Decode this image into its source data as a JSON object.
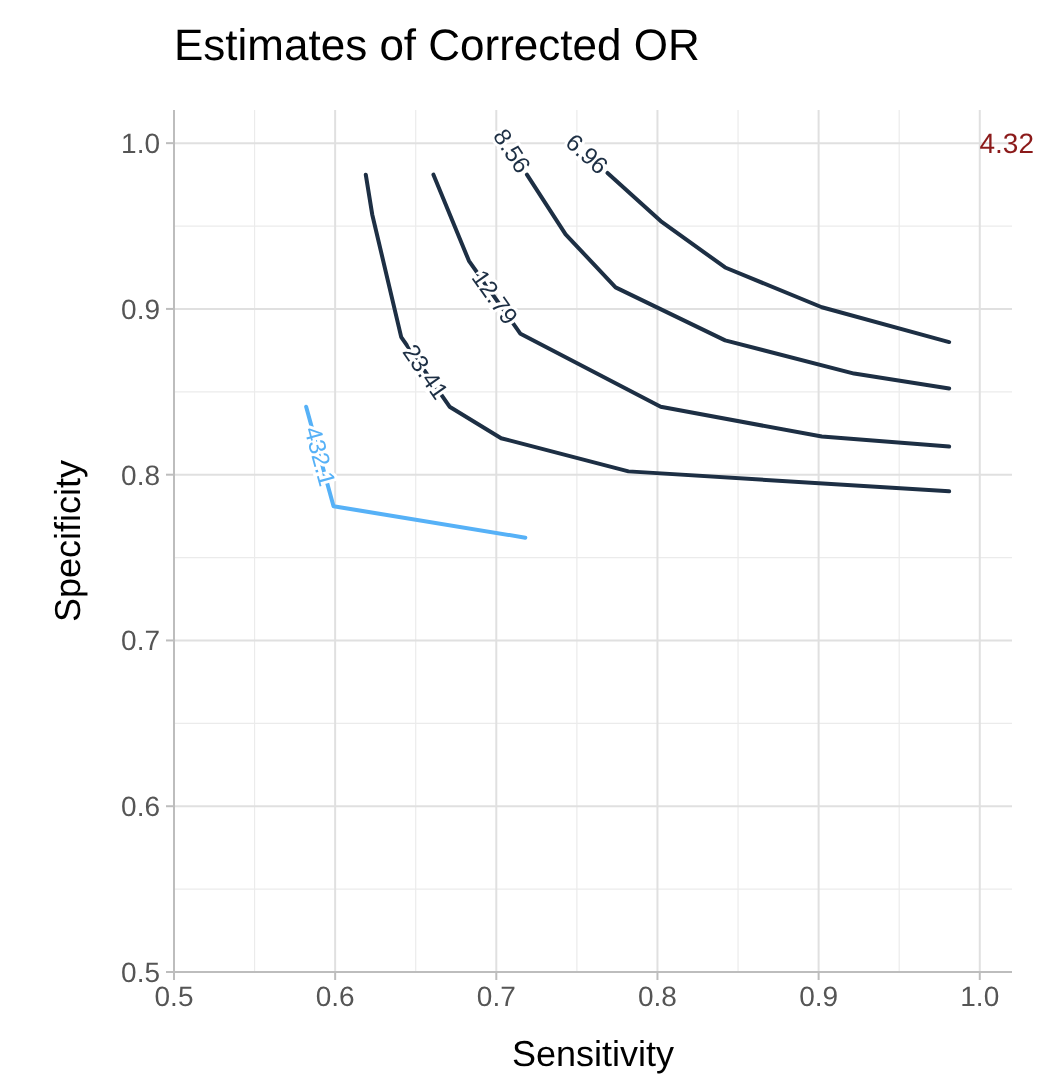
{
  "chart_data": {
    "type": "line",
    "title": "Estimates of Corrected OR",
    "xlabel": "Sensitivity",
    "ylabel": "Specificity",
    "xlim": [
      0.5,
      1.02
    ],
    "ylim": [
      0.5,
      1.02
    ],
    "xticks": [
      0.5,
      0.6,
      0.7,
      0.8,
      0.9,
      {
        "value": 1,
        "label": "1.0"
      }
    ],
    "yticks": [
      0.5,
      0.6,
      0.7,
      0.8,
      0.9,
      {
        "value": 1,
        "label": "1.0"
      }
    ],
    "grid": true,
    "marker": "none",
    "line_style": "solid",
    "series": [
      {
        "name": "6.96",
        "color": "#1d2f44",
        "x": [
          0.769,
          0.802,
          0.842,
          0.902,
          0.981
        ],
        "values": [
          0.982,
          0.953,
          0.925,
          0.901,
          0.88
        ]
      },
      {
        "name": "8.56",
        "color": "#1d2f44",
        "x": [
          0.719,
          0.743,
          0.774,
          0.842,
          0.922,
          0.981
        ],
        "values": [
          0.981,
          0.945,
          0.913,
          0.881,
          0.861,
          0.852
        ]
      },
      {
        "name": "12.79",
        "color": "#1d2f44",
        "x": [
          0.661,
          0.683,
          0.715,
          0.802,
          0.902,
          0.981
        ],
        "values": [
          0.981,
          0.929,
          0.885,
          0.841,
          0.823,
          0.817
        ]
      },
      {
        "name": "23.41",
        "color": "#1d2f44",
        "x": [
          0.619,
          0.623,
          0.641,
          0.671,
          0.703,
          0.782,
          0.981
        ],
        "values": [
          0.981,
          0.957,
          0.883,
          0.841,
          0.822,
          0.802,
          0.79
        ]
      },
      {
        "name": "432.1",
        "color": "#56b1f7",
        "x": [
          0.582,
          0.599,
          0.718
        ],
        "values": [
          0.841,
          0.781,
          0.762
        ]
      }
    ],
    "annotations": [
      "4.32"
    ]
  }
}
